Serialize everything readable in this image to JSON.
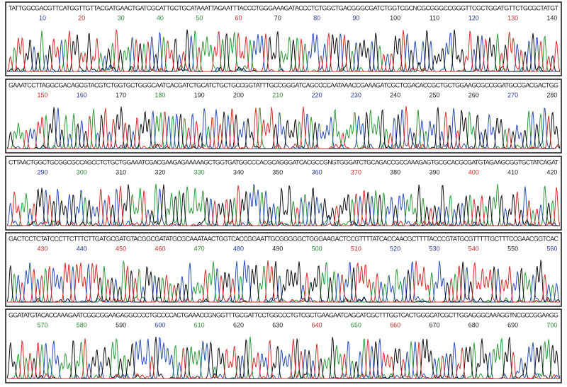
{
  "panels": [
    {
      "sequence": "TATTGGCGACGTTCATGGTTGTTACGATGAACTGATCGCATTGCTGCATAAATTAGAATTTACCCTGGGAAAGATACCCTCTGGCTGACGGGCGATCTGGTCGCNCGCGGGCCGGGTTCGCTGGATGTTCTGCGCTATGT",
      "positions": [
        {
          "text": "10",
          "color": "#2a3a9a"
        },
        {
          "text": "20",
          "color": "#c0302a"
        },
        {
          "text": "30",
          "color": "#2f8a3a"
        },
        {
          "text": "40",
          "color": "#2f8a3a"
        },
        {
          "text": "50",
          "color": "#2f8a3a"
        },
        {
          "text": "60",
          "color": "#c0302a"
        },
        {
          "text": "70",
          "color": "#222222"
        },
        {
          "text": "80",
          "color": "#2a3a9a"
        },
        {
          "text": "90",
          "color": "#2a3a9a"
        },
        {
          "text": "100",
          "color": "#222222"
        },
        {
          "text": "110",
          "color": "#222222"
        },
        {
          "text": "120",
          "color": "#2a3a9a"
        },
        {
          "text": "130",
          "color": "#c0302a"
        },
        {
          "text": "140",
          "color": "#222222"
        }
      ]
    },
    {
      "sequence": "GAAATCCTTAGGCGACAGCGTACGTCTGGTGCTGGGCAATCACGATCTGCATCTGCTGCCGGTATTTGCCGGGATCAGCCCCAATAAACCGAAAGATCGCTCGACACCGCTGCTGGAAGCGCCGGATGCCGACGACTGG",
      "positions": [
        {
          "text": "150",
          "color": "#c0302a"
        },
        {
          "text": "160",
          "color": "#2a3a9a"
        },
        {
          "text": "170",
          "color": "#222222"
        },
        {
          "text": "180",
          "color": "#2f8a3a"
        },
        {
          "text": "190",
          "color": "#222222"
        },
        {
          "text": "200",
          "color": "#222222"
        },
        {
          "text": "210",
          "color": "#2f8a3a"
        },
        {
          "text": "220",
          "color": "#2a3a9a"
        },
        {
          "text": "230",
          "color": "#2a3a9a"
        },
        {
          "text": "240",
          "color": "#222222"
        },
        {
          "text": "250",
          "color": "#222222"
        },
        {
          "text": "260",
          "color": "#222222"
        },
        {
          "text": "270",
          "color": "#2a3a9a"
        },
        {
          "text": "280",
          "color": "#222222"
        }
      ]
    },
    {
      "sequence": "CTTAACTGGCTGCGGCGCCAGCCTCTGCTGGAAATCGACGAAGAGAAAAAGCTGGTGATGGCCCACGCAGGGATCACGCCGNGTGGGATCTGCAGACCGCCAAAGAGTGCGCACGCGATGTAGAAGCGGTGCTATCAGAT",
      "positions": [
        {
          "text": "290",
          "color": "#2a3a9a"
        },
        {
          "text": "300",
          "color": "#2f8a3a"
        },
        {
          "text": "310",
          "color": "#222222"
        },
        {
          "text": "320",
          "color": "#222222"
        },
        {
          "text": "330",
          "color": "#2f8a3a"
        },
        {
          "text": "340",
          "color": "#222222"
        },
        {
          "text": "350",
          "color": "#222222"
        },
        {
          "text": "360",
          "color": "#2a3a9a"
        },
        {
          "text": "370",
          "color": "#c0302a"
        },
        {
          "text": "380",
          "color": "#222222"
        },
        {
          "text": "390",
          "color": "#222222"
        },
        {
          "text": "400",
          "color": "#c0302a"
        },
        {
          "text": "410",
          "color": "#222222"
        },
        {
          "text": "420",
          "color": "#222222"
        }
      ]
    },
    {
      "sequence": "GACTCCTCTATCCCTTCTTTCTTGATGCGATGTACGGCGATATGCGCAAATAACTGGTCACCGGAATTGCGGGGGCTGGGAAGACTCCGTTTTATCACCAACGCTTTTACCCGTATGCGTTTTTGCTTTCCGAACGGTCAC",
      "positions": [
        {
          "text": "430",
          "color": "#c0302a"
        },
        {
          "text": "440",
          "color": "#2a3a9a"
        },
        {
          "text": "450",
          "color": "#c0302a"
        },
        {
          "text": "460",
          "color": "#c0302a"
        },
        {
          "text": "470",
          "color": "#2f8a3a"
        },
        {
          "text": "480",
          "color": "#2a3a9a"
        },
        {
          "text": "490",
          "color": "#222222"
        },
        {
          "text": "500",
          "color": "#2f8a3a"
        },
        {
          "text": "510",
          "color": "#c0302a"
        },
        {
          "text": "520",
          "color": "#2a3a9a"
        },
        {
          "text": "530",
          "color": "#2a3a9a"
        },
        {
          "text": "540",
          "color": "#c0302a"
        },
        {
          "text": "550",
          "color": "#222222"
        },
        {
          "text": "560",
          "color": "#2a3a9a"
        }
      ]
    },
    {
      "sequence": "GGATATGTACACCAAAGAATCGGCGGAAGAGGCCCCTGCCCCACTGAAACCGNGGTTTGCGATTCCTGGCCCTGTCGCTGAAGAATCAGCATCGCTTTGGTCACTGGGCATCGCTTGGAGGGCAAAGGTNCGCCGGAAGG",
      "positions": [
        {
          "text": "570",
          "color": "#2f8a3a"
        },
        {
          "text": "580",
          "color": "#2f8a3a"
        },
        {
          "text": "590",
          "color": "#222222"
        },
        {
          "text": "600",
          "color": "#2a3a9a"
        },
        {
          "text": "610",
          "color": "#2f8a3a"
        },
        {
          "text": "620",
          "color": "#222222"
        },
        {
          "text": "630",
          "color": "#222222"
        },
        {
          "text": "640",
          "color": "#c0302a"
        },
        {
          "text": "650",
          "color": "#2f8a3a"
        },
        {
          "text": "660",
          "color": "#c0302a"
        },
        {
          "text": "670",
          "color": "#222222"
        },
        {
          "text": "680",
          "color": "#222222"
        },
        {
          "text": "690",
          "color": "#222222"
        },
        {
          "text": "700",
          "color": "#2f8a3a"
        }
      ]
    }
  ],
  "base_colors": {
    "A": "#2f9a3a",
    "C": "#2a4fb0",
    "G": "#111111",
    "T": "#d0302a"
  }
}
